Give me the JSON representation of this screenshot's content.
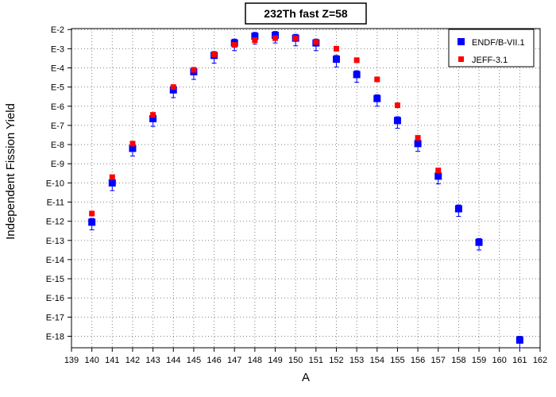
{
  "chart_data": {
    "type": "scatter",
    "title": "232Th fast Z=58",
    "xlabel": "A",
    "ylabel": "Independent Fission Yield",
    "xlim": [
      139,
      162
    ],
    "ylim_exponent": [
      -18.6,
      -1.95
    ],
    "y_scale": "log",
    "grid": true,
    "legend": "top-right",
    "x_ticks": [
      139,
      140,
      141,
      142,
      143,
      144,
      145,
      146,
      147,
      148,
      149,
      150,
      151,
      152,
      153,
      154,
      155,
      156,
      157,
      158,
      159,
      160,
      161,
      162
    ],
    "y_ticks": [
      {
        "exp": -2,
        "label": "E-2"
      },
      {
        "exp": -3,
        "label": "E-3"
      },
      {
        "exp": -4,
        "label": "E-4"
      },
      {
        "exp": -5,
        "label": "E-5"
      },
      {
        "exp": -6,
        "label": "E-6"
      },
      {
        "exp": -7,
        "label": "E-7"
      },
      {
        "exp": -8,
        "label": "E-8"
      },
      {
        "exp": -9,
        "label": "E-9"
      },
      {
        "exp": -10,
        "label": "E-10"
      },
      {
        "exp": -11,
        "label": "E-11"
      },
      {
        "exp": -12,
        "label": "E-12"
      },
      {
        "exp": -13,
        "label": "E-13"
      },
      {
        "exp": -14,
        "label": "E-14"
      },
      {
        "exp": -15,
        "label": "E-15"
      },
      {
        "exp": -16,
        "label": "E-16"
      },
      {
        "exp": -17,
        "label": "E-17"
      },
      {
        "exp": -18,
        "label": "E-18"
      }
    ],
    "series": [
      {
        "name": "ENDF/B-VII.1",
        "color": "#0000ff",
        "points": [
          {
            "x": 140,
            "y": "1e-12.05",
            "exp": -12.05,
            "err_lo": -12.45,
            "err_hi": -11.85
          },
          {
            "x": 141,
            "y": "1e-10",
            "exp": -10.0,
            "err_lo": -10.4,
            "err_hi": -9.8
          },
          {
            "x": 142,
            "y": "1e-8.2",
            "exp": -8.2,
            "err_lo": -8.6,
            "err_hi": -8.0
          },
          {
            "x": 143,
            "y": "1e-6.65",
            "exp": -6.65,
            "err_lo": -7.05,
            "err_hi": -6.45
          },
          {
            "x": 144,
            "y": "1e-5.15",
            "exp": -5.15,
            "err_lo": -5.55,
            "err_hi": -4.95
          },
          {
            "x": 145,
            "y": "1e-4.2",
            "exp": -4.2,
            "err_lo": -4.6,
            "err_hi": -4.0
          },
          {
            "x": 146,
            "y": "1e-3.35",
            "exp": -3.35,
            "err_lo": -3.75,
            "err_hi": -3.15
          },
          {
            "x": 147,
            "y": "1e-2.7",
            "exp": -2.7,
            "err_lo": -3.1,
            "err_hi": -2.5
          },
          {
            "x": 148,
            "y": "1e-2.35",
            "exp": -2.35,
            "err_lo": -2.75,
            "err_hi": -2.15
          },
          {
            "x": 149,
            "y": "1e-2.3",
            "exp": -2.3,
            "err_lo": -2.7,
            "err_hi": -2.1
          },
          {
            "x": 150,
            "y": "1e-2.45",
            "exp": -2.45,
            "err_lo": -2.85,
            "err_hi": -2.25
          },
          {
            "x": 151,
            "y": "1e-2.7",
            "exp": -2.7,
            "err_lo": -3.1,
            "err_hi": -2.5
          },
          {
            "x": 152,
            "y": "1e-3.55",
            "exp": -3.55,
            "err_lo": -3.95,
            "err_hi": -3.35
          },
          {
            "x": 153,
            "y": "1e-4.35",
            "exp": -4.35,
            "err_lo": -4.75,
            "err_hi": -4.15
          },
          {
            "x": 154,
            "y": "1e-5.6",
            "exp": -5.6,
            "err_lo": -6.0,
            "err_hi": -5.4
          },
          {
            "x": 155,
            "y": "1e-6.75",
            "exp": -6.75,
            "err_lo": -7.15,
            "err_hi": -6.55
          },
          {
            "x": 156,
            "y": "1e-7.95",
            "exp": -7.95,
            "err_lo": -8.35,
            "err_hi": -7.75
          },
          {
            "x": 157,
            "y": "1e-9.65",
            "exp": -9.65,
            "err_lo": -10.05,
            "err_hi": -9.45
          },
          {
            "x": 158,
            "y": "1e-11.35",
            "exp": -11.35,
            "err_lo": -11.75,
            "err_hi": -11.15
          },
          {
            "x": 159,
            "y": "1e-13.1",
            "exp": -13.1,
            "err_lo": -13.5,
            "err_hi": -12.9
          },
          {
            "x": 161,
            "y": "1e-18.2",
            "exp": -18.2,
            "err_lo": -18.6,
            "err_hi": -18.0
          }
        ]
      },
      {
        "name": "JEFF-3.1",
        "color": "#ff0000",
        "points": [
          {
            "x": 140,
            "exp": -11.6
          },
          {
            "x": 141,
            "exp": -9.7
          },
          {
            "x": 142,
            "exp": -7.95
          },
          {
            "x": 143,
            "exp": -6.45
          },
          {
            "x": 144,
            "exp": -5.0
          },
          {
            "x": 145,
            "exp": -4.1
          },
          {
            "x": 146,
            "exp": -3.3
          },
          {
            "x": 147,
            "exp": -2.8
          },
          {
            "x": 148,
            "exp": -2.55
          },
          {
            "x": 149,
            "exp": -2.45
          },
          {
            "x": 150,
            "exp": -2.45
          },
          {
            "x": 151,
            "exp": -2.65
          },
          {
            "x": 152,
            "exp": -3.0
          },
          {
            "x": 153,
            "exp": -3.6
          },
          {
            "x": 154,
            "exp": -4.6
          },
          {
            "x": 155,
            "exp": -5.95
          },
          {
            "x": 156,
            "exp": -7.65
          },
          {
            "x": 157,
            "exp": -9.35
          }
        ]
      }
    ]
  }
}
